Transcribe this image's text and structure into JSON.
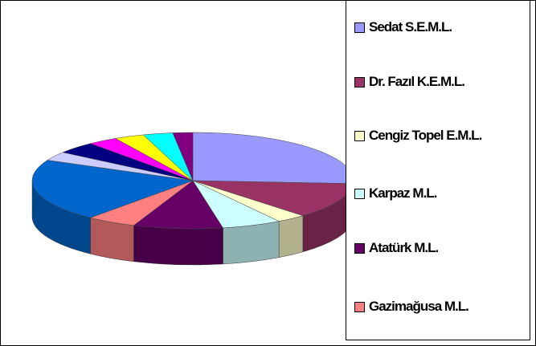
{
  "chart_data": {
    "type": "pie3d",
    "categories": [
      "Sedat S.E.M.L.",
      "Dr. Fazıl K.E.M.L.",
      "Cengiz Topel E.M.L.",
      "Karpaz M.L.",
      "Atatürk M.L.",
      "Gazimağusa M.L.",
      null,
      null,
      null,
      null,
      null,
      null,
      null
    ],
    "values": [
      26,
      12,
      3,
      6,
      9,
      5,
      21,
      3,
      4,
      3,
      3,
      3,
      2
    ],
    "colors": [
      "#9999ff",
      "#993366",
      "#ffffcc",
      "#ccffff",
      "#660066",
      "#ff8080",
      "#0066cc",
      "#ccccff",
      "#000080",
      "#ff00ff",
      "#ffff00",
      "#00ffff",
      "#800080"
    ],
    "legend": "right"
  }
}
